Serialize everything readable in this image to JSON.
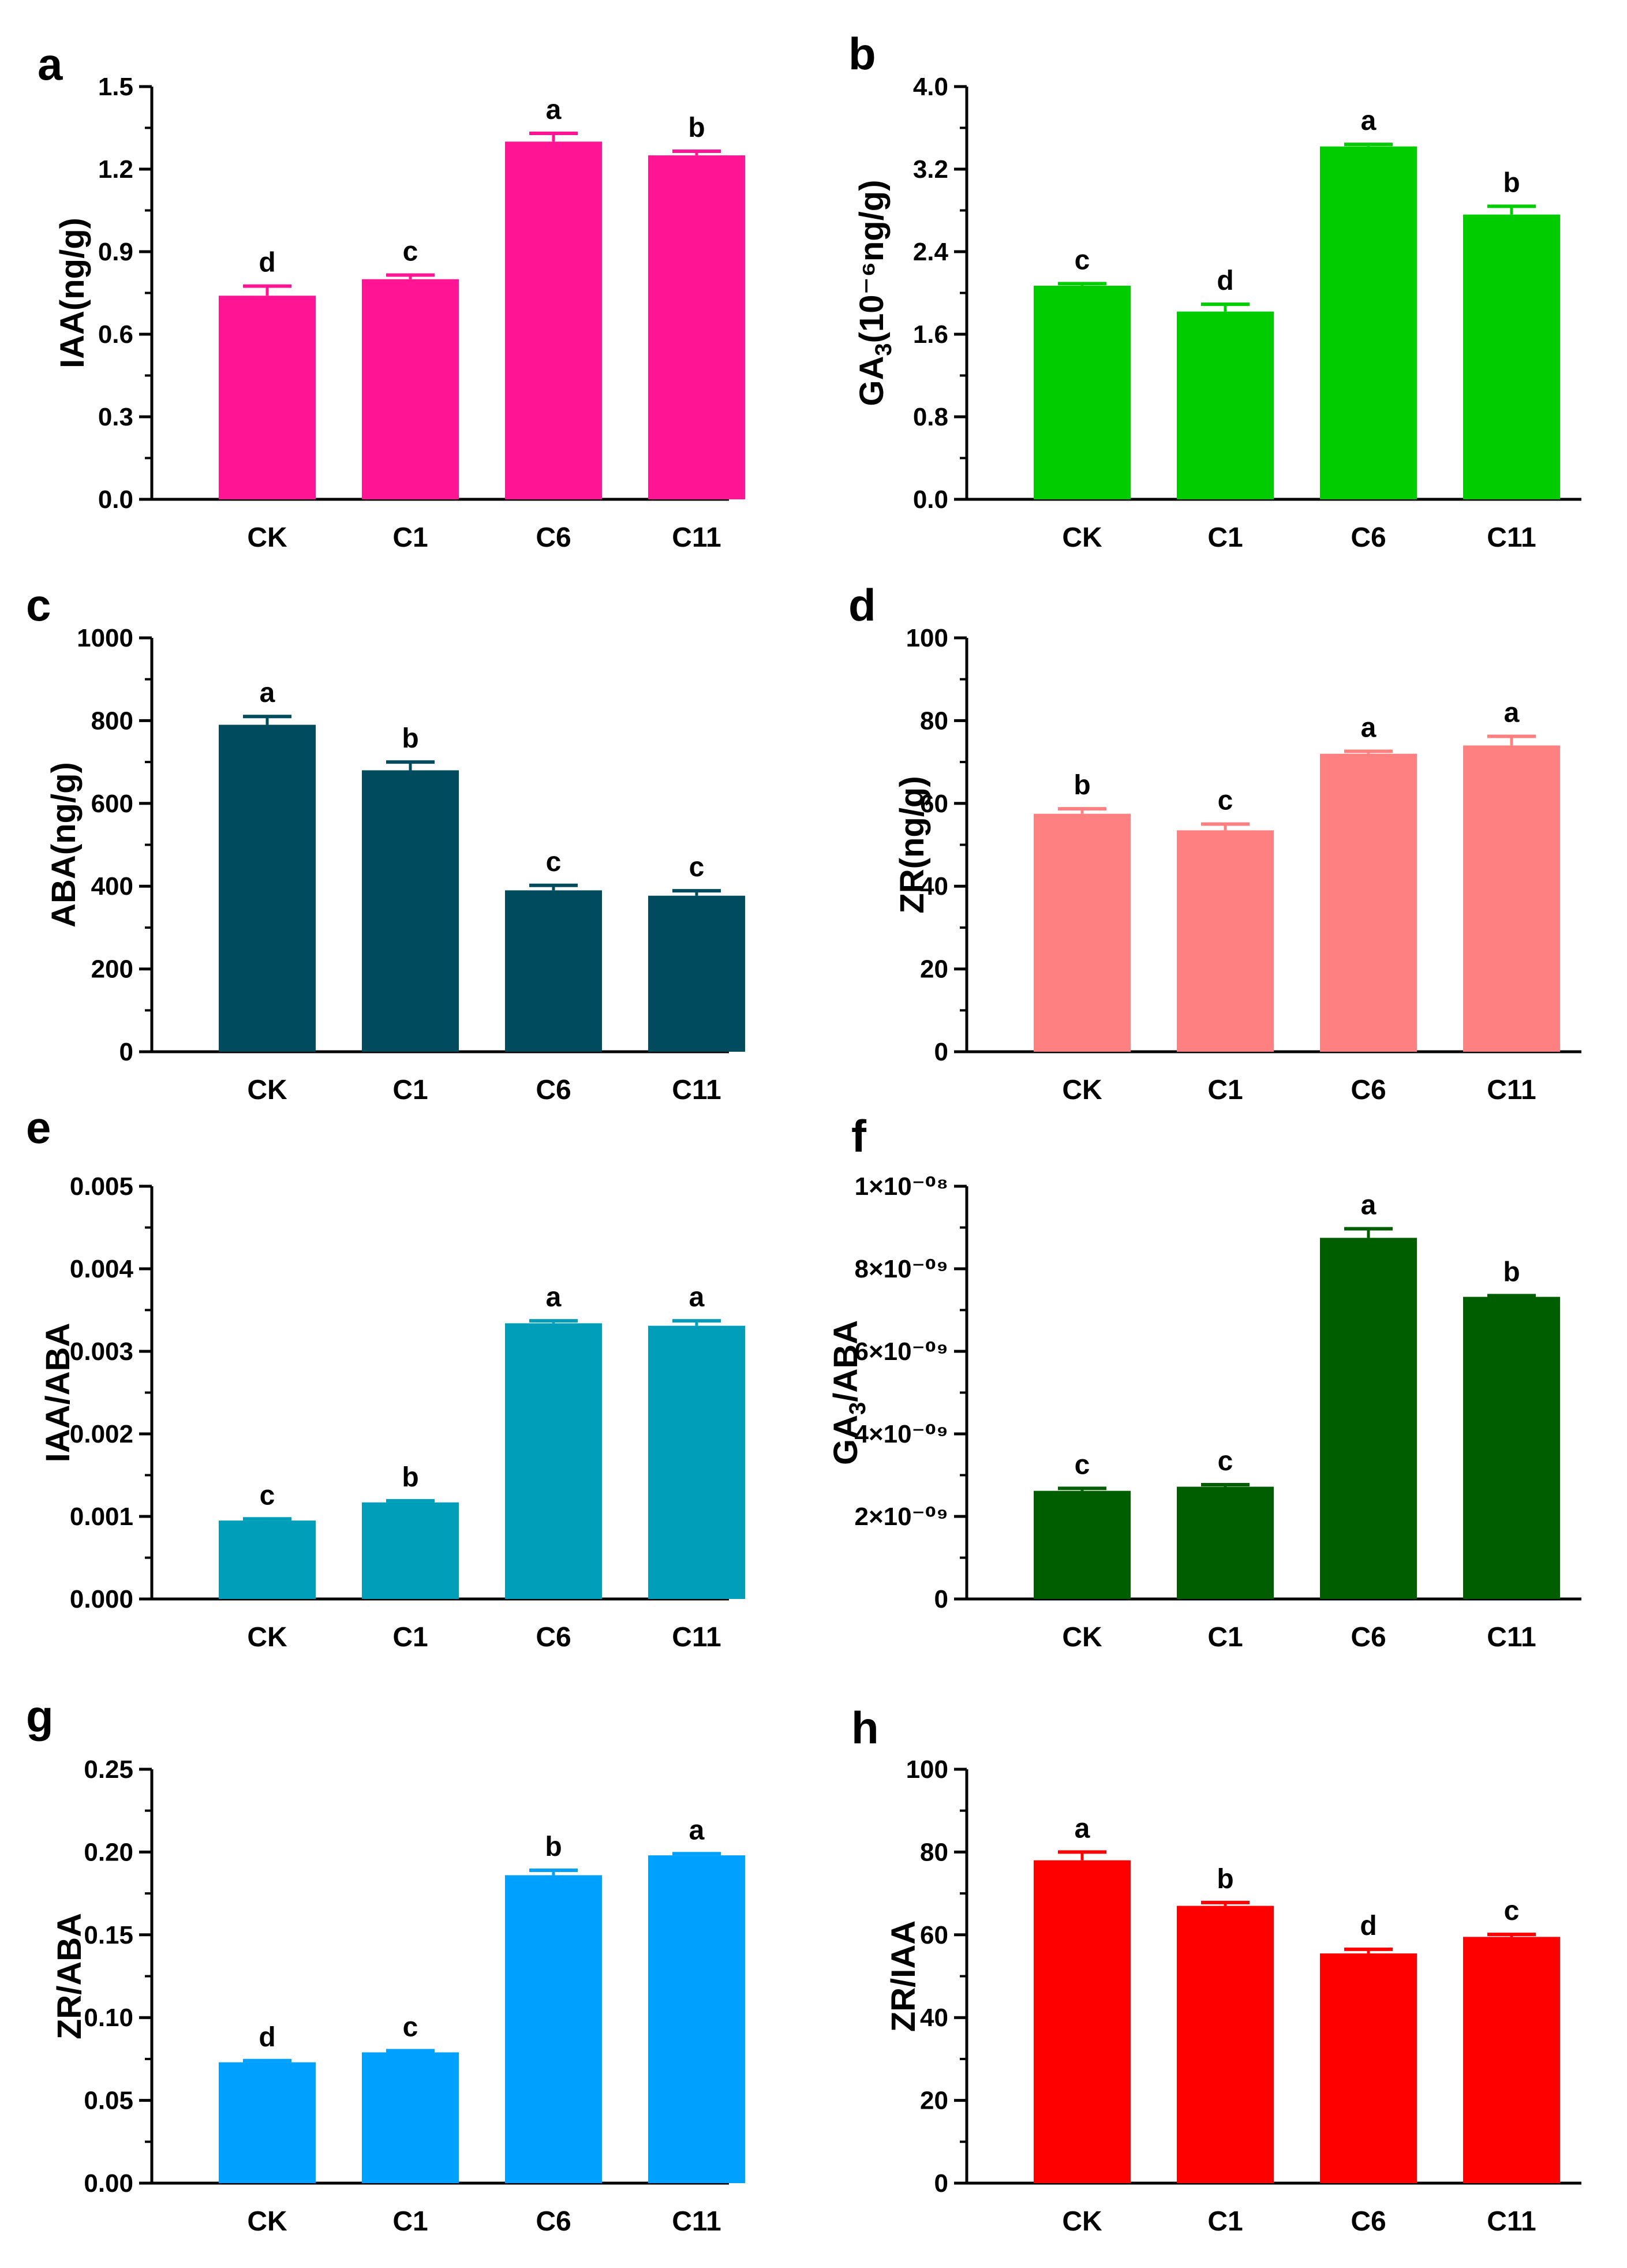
{
  "chart_data": [
    {
      "panel_label": "a",
      "type": "bar",
      "color": "#FF1493",
      "ylabel_main": "IAA(ng/g)",
      "ylabel_sub": "",
      "ylabel_post": "",
      "categories": [
        "CK",
        "C1",
        "C6",
        "C11"
      ],
      "values": [
        0.74,
        0.8,
        1.3,
        1.25
      ],
      "errors": [
        0.035,
        0.015,
        0.03,
        0.015
      ],
      "sig_letters": [
        "d",
        "c",
        "a",
        "b"
      ],
      "ylim": [
        0,
        1.5
      ],
      "ticks": [
        "0.0",
        "0.3",
        "0.6",
        "0.9",
        "1.2",
        "1.5"
      ]
    },
    {
      "panel_label": "b",
      "type": "bar",
      "color": "#00CC00",
      "ylabel_main": "GA",
      "ylabel_sub": "3",
      "ylabel_post": "(10⁻⁶ng/g)",
      "categories": [
        "CK",
        "C1",
        "C6",
        "C11"
      ],
      "values": [
        2.07,
        1.82,
        3.42,
        2.76
      ],
      "errors": [
        0.02,
        0.07,
        0.02,
        0.08
      ],
      "sig_letters": [
        "c",
        "d",
        "a",
        "b"
      ],
      "ylim": [
        0,
        4.0
      ],
      "ticks": [
        "0.0",
        "0.8",
        "1.6",
        "2.4",
        "3.2",
        "4.0"
      ]
    },
    {
      "panel_label": "c",
      "type": "bar",
      "color": "#004C5E",
      "ylabel_main": "ABA(ng/g)",
      "ylabel_sub": "",
      "ylabel_post": "",
      "categories": [
        "CK",
        "C1",
        "C6",
        "C11"
      ],
      "values": [
        790,
        680,
        390,
        377
      ],
      "errors": [
        20,
        20,
        12,
        12
      ],
      "sig_letters": [
        "a",
        "b",
        "c",
        "c"
      ],
      "ylim": [
        0,
        1000
      ],
      "ticks": [
        "0",
        "200",
        "400",
        "600",
        "800",
        "1000"
      ]
    },
    {
      "panel_label": "d",
      "type": "bar",
      "color": "#FF8080",
      "ylabel_main": "ZR(ng/g)",
      "ylabel_sub": "",
      "ylabel_post": "",
      "categories": [
        "CK",
        "C1",
        "C6",
        "C11"
      ],
      "values": [
        57.5,
        53.5,
        72,
        74
      ],
      "errors": [
        1.2,
        1.5,
        0.6,
        2.2
      ],
      "sig_letters": [
        "b",
        "c",
        "a",
        "a"
      ],
      "ylim": [
        0,
        100
      ],
      "ticks": [
        "0",
        "20",
        "40",
        "60",
        "80",
        "100"
      ]
    },
    {
      "panel_label": "e",
      "type": "bar",
      "color": "#009EB8",
      "ylabel_main": "IAA/ABA",
      "ylabel_sub": "",
      "ylabel_post": "",
      "categories": [
        "CK",
        "C1",
        "C6",
        "C11"
      ],
      "values": [
        0.00095,
        0.00117,
        0.00334,
        0.00331
      ],
      "errors": [
        2e-05,
        2e-05,
        3e-05,
        6e-05
      ],
      "sig_letters": [
        "c",
        "b",
        "a",
        "a"
      ],
      "ylim": [
        0,
        0.005
      ],
      "ticks": [
        "0.000",
        "0.001",
        "0.002",
        "0.003",
        "0.004",
        "0.005"
      ]
    },
    {
      "panel_label": "f",
      "type": "bar",
      "color": "#005E00",
      "ylabel_main": "GA",
      "ylabel_sub": "3",
      "ylabel_post": "/ABA",
      "categories": [
        "CK",
        "C1",
        "C6",
        "C11"
      ],
      "values": [
        2.62e-09,
        2.72e-09,
        8.75e-09,
        7.32e-09
      ],
      "errors": [
        6e-11,
        5e-11,
        2.2e-10,
        3e-11
      ],
      "sig_letters": [
        "c",
        "c",
        "a",
        "b"
      ],
      "ylim": [
        0,
        1e-08
      ],
      "ticks": [
        "0",
        "2×10⁻⁰⁹",
        "4×10⁻⁰⁹",
        "6×10⁻⁰⁹",
        "8×10⁻⁰⁹",
        "1×10⁻⁰⁸"
      ]
    },
    {
      "panel_label": "g",
      "type": "bar",
      "color": "#00A0FF",
      "ylabel_main": "ZR/ABA",
      "ylabel_sub": "",
      "ylabel_post": "",
      "categories": [
        "CK",
        "C1",
        "C6",
        "C11"
      ],
      "values": [
        0.073,
        0.079,
        0.186,
        0.198
      ],
      "errors": [
        0.001,
        0.001,
        0.003,
        0.001
      ],
      "sig_letters": [
        "d",
        "c",
        "b",
        "a"
      ],
      "ylim": [
        0,
        0.25
      ],
      "ticks": [
        "0.00",
        "0.05",
        "0.10",
        "0.15",
        "0.20",
        "0.25"
      ]
    },
    {
      "panel_label": "h",
      "type": "bar",
      "color": "#FF0000",
      "ylabel_main": "ZR/IAA",
      "ylabel_sub": "",
      "ylabel_post": "",
      "categories": [
        "CK",
        "C1",
        "C6",
        "C11"
      ],
      "values": [
        78,
        67,
        55.5,
        59.5
      ],
      "errors": [
        2.0,
        0.8,
        1.0,
        0.6
      ],
      "sig_letters": [
        "a",
        "b",
        "d",
        "c"
      ],
      "ylim": [
        0,
        100
      ],
      "ticks": [
        "0",
        "20",
        "40",
        "60",
        "80",
        "100"
      ]
    }
  ]
}
